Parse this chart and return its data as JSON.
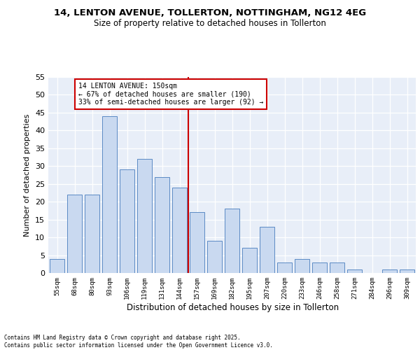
{
  "title1": "14, LENTON AVENUE, TOLLERTON, NOTTINGHAM, NG12 4EG",
  "title2": "Size of property relative to detached houses in Tollerton",
  "xlabel": "Distribution of detached houses by size in Tollerton",
  "ylabel": "Number of detached properties",
  "categories": [
    "55sqm",
    "68sqm",
    "80sqm",
    "93sqm",
    "106sqm",
    "119sqm",
    "131sqm",
    "144sqm",
    "157sqm",
    "169sqm",
    "182sqm",
    "195sqm",
    "207sqm",
    "220sqm",
    "233sqm",
    "246sqm",
    "258sqm",
    "271sqm",
    "284sqm",
    "296sqm",
    "309sqm"
  ],
  "values": [
    4,
    22,
    22,
    44,
    29,
    32,
    27,
    24,
    17,
    9,
    18,
    7,
    13,
    3,
    4,
    3,
    3,
    1,
    0,
    1,
    1
  ],
  "bar_color": "#c9d9f0",
  "bar_edge_color": "#5b8ac4",
  "vline_color": "#cc0000",
  "annotation_text": "14 LENTON AVENUE: 150sqm\n← 67% of detached houses are smaller (190)\n33% of semi-detached houses are larger (92) →",
  "annotation_box_color": "#ffffff",
  "annotation_box_edge_color": "#cc0000",
  "ylim": [
    0,
    55
  ],
  "yticks": [
    0,
    5,
    10,
    15,
    20,
    25,
    30,
    35,
    40,
    45,
    50,
    55
  ],
  "bg_color": "#e8eef8",
  "grid_color": "#ffffff",
  "footer": "Contains HM Land Registry data © Crown copyright and database right 2025.\nContains public sector information licensed under the Open Government Licence v3.0."
}
